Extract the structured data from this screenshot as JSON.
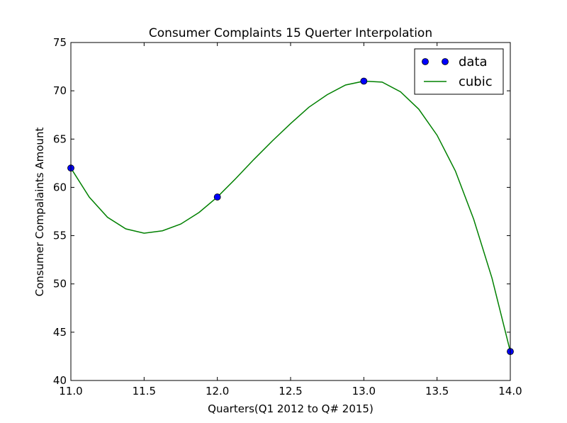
{
  "chart_data": {
    "type": "line",
    "title": "Consumer Complaints 15 Querter Interpolation",
    "xlabel": "Quarters(Q1 2012 to Q# 2015)",
    "ylabel": "Consumer Compalaints Amount",
    "xlim": [
      11.0,
      14.0
    ],
    "ylim": [
      40,
      75
    ],
    "xticks": [
      "11.0",
      "11.5",
      "12.0",
      "12.5",
      "13.0",
      "13.5",
      "14.0"
    ],
    "yticks": [
      "40",
      "45",
      "50",
      "55",
      "60",
      "65",
      "70",
      "75"
    ],
    "grid": false,
    "legend_position": "top-right",
    "series": [
      {
        "name": "data",
        "style": "markers",
        "color": "#0000ff",
        "x": [
          11,
          12,
          13,
          14
        ],
        "y": [
          62,
          59,
          71,
          43
        ]
      },
      {
        "name": "cubic",
        "style": "line",
        "color": "#008000",
        "x": [
          11.0,
          11.125,
          11.25,
          11.375,
          11.5,
          11.625,
          11.75,
          11.875,
          12.0,
          12.125,
          12.25,
          12.375,
          12.5,
          12.625,
          12.75,
          12.875,
          13.0,
          13.125,
          13.25,
          13.375,
          13.5,
          13.625,
          13.75,
          13.875,
          14.0
        ],
        "y": [
          62.0,
          59.0,
          56.9,
          55.7,
          55.25,
          55.5,
          56.2,
          57.4,
          59.0,
          60.9,
          62.9,
          64.8,
          66.6,
          68.3,
          69.6,
          70.6,
          71.0,
          70.9,
          69.9,
          68.1,
          65.4,
          61.7,
          56.7,
          50.6,
          43.0
        ]
      }
    ]
  }
}
